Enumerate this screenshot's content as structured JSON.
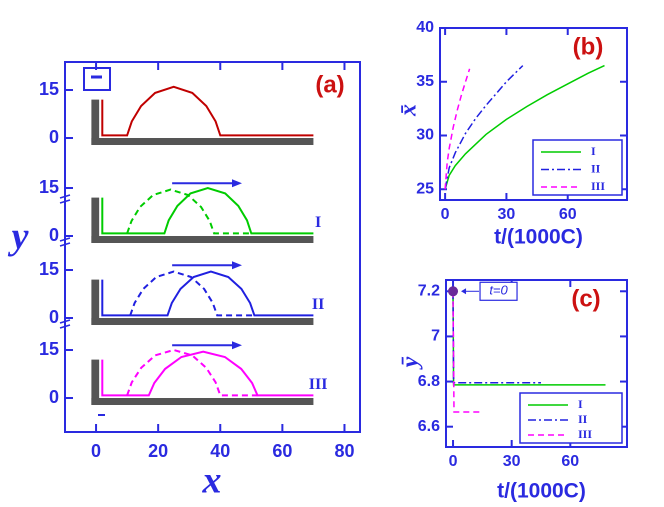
{
  "chart_data": [
    {
      "type": "profile",
      "label": "(a)",
      "xlabel": "x",
      "ylabel": "y",
      "xlim": [
        -10,
        85
      ],
      "xticks": [
        0,
        20,
        40,
        60,
        80
      ],
      "yticks": [
        0,
        15
      ],
      "panels": [
        {
          "series": [
            {
              "color": "#c00000",
              "style": "solid",
              "x": [
                2,
                2,
                10,
                11.5,
                14.5,
                19,
                25,
                31,
                35.5,
                38.5,
                40,
                70
              ],
              "y": [
                12,
                0.8,
                0.8,
                5.2,
                10,
                14.1,
                16,
                14.1,
                10,
                5.2,
                0.8,
                0.8
              ]
            }
          ]
        },
        {
          "name": "I",
          "series": [
            {
              "color": "#00cc00",
              "style": "dashed",
              "x": [
                10,
                11.4,
                14.2,
                18.4,
                24,
                29.6,
                33.8,
                36.6,
                38,
                50
              ],
              "y": [
                0.8,
                4.7,
                9.1,
                12.8,
                14.5,
                12.8,
                9.1,
                4.7,
                0.8,
                0.8
              ]
            },
            {
              "color": "#00cc00",
              "style": "solid",
              "x": [
                2,
                2,
                22,
                23.4,
                26.2,
                30.4,
                36,
                41.6,
                45.8,
                48.6,
                50,
                70
              ],
              "y": [
                12,
                0.8,
                0.8,
                4.9,
                9.4,
                13.3,
                15,
                13.3,
                9.4,
                4.9,
                0.8,
                0.8
              ]
            }
          ]
        },
        {
          "name": "II",
          "series": [
            {
              "color": "#2020e0",
              "style": "dashed",
              "x": [
                11,
                12.4,
                15.2,
                19.4,
                25,
                30.6,
                34.8,
                37.6,
                39,
                51
              ],
              "y": [
                0.8,
                4.7,
                9.1,
                12.8,
                14.5,
                12.8,
                9.1,
                4.7,
                0.8,
                0.8
              ]
            },
            {
              "color": "#2020e0",
              "style": "solid",
              "x": [
                2,
                2,
                23,
                24.4,
                27.2,
                31.4,
                37,
                42.6,
                46.8,
                49.6,
                51,
                70
              ],
              "y": [
                12,
                0.8,
                0.8,
                4.7,
                9.1,
                12.8,
                14.5,
                12.8,
                9.1,
                4.7,
                0.8,
                0.8
              ]
            }
          ]
        },
        {
          "name": "III",
          "series": [
            {
              "color": "#ff00ff",
              "style": "dashed",
              "x": [
                10,
                11.5,
                14.5,
                19,
                25,
                31,
                35.5,
                38.5,
                40,
                52
              ],
              "y": [
                0.8,
                4.9,
                9.4,
                13.3,
                15,
                13.3,
                9.4,
                4.9,
                0.8,
                0.8
              ]
            },
            {
              "color": "#ff00ff",
              "style": "solid",
              "x": [
                2,
                2,
                17,
                18.75,
                22.25,
                27.5,
                34.5,
                41.5,
                46.75,
                50.25,
                52,
                70
              ],
              "y": [
                12,
                0.8,
                0.8,
                4.7,
                9.1,
                12.8,
                14.5,
                12.8,
                9.1,
                4.7,
                0.8,
                0.8
              ]
            }
          ]
        }
      ]
    },
    {
      "type": "line",
      "label": "(b)",
      "xlabel": "t/(1000C)",
      "ylabel": "x̄",
      "xlim": [
        -2.5,
        89
      ],
      "xticks": [
        0,
        30,
        60
      ],
      "ylim": [
        24,
        40
      ],
      "yticks": [
        25,
        30,
        35,
        40
      ],
      "series": [
        {
          "name": "I",
          "color": "#00cc00",
          "style": "solid",
          "x": [
            0,
            2,
            5,
            10,
            20,
            30,
            40,
            50,
            60,
            70,
            78
          ],
          "y": [
            25,
            26.3,
            27.2,
            28.3,
            30.1,
            31.5,
            32.7,
            33.8,
            34.8,
            35.8,
            36.5
          ]
        },
        {
          "name": "II",
          "color": "#2020e0",
          "style": "dashdot",
          "x": [
            0,
            2,
            5,
            10,
            15,
            20,
            25,
            30,
            38
          ],
          "y": [
            25,
            27,
            28.4,
            30.2,
            31.6,
            32.8,
            33.9,
            35,
            36.5
          ]
        },
        {
          "name": "III",
          "color": "#ff00ff",
          "style": "dashed",
          "x": [
            0,
            1,
            2,
            4,
            6,
            8,
            10,
            12
          ],
          "y": [
            25,
            27.5,
            28.8,
            30.8,
            32.4,
            33.8,
            35,
            36.2
          ]
        }
      ]
    },
    {
      "type": "line",
      "label": "(c)",
      "xlabel": "t/(1000C)",
      "ylabel": "ȳ",
      "xlim": [
        -3.6,
        89
      ],
      "xticks": [
        0,
        30,
        60
      ],
      "ylim": [
        6.51,
        7.25
      ],
      "yticks": [
        6.6,
        6.8,
        7,
        7.2
      ],
      "marker": {
        "x": 0,
        "y": 7.2,
        "label": "t=0"
      },
      "series": [
        {
          "name": "I",
          "color": "#00cc00",
          "style": "solid",
          "x": [
            0,
            0.3,
            78
          ],
          "y": [
            7.2,
            6.785,
            6.785
          ]
        },
        {
          "name": "II",
          "color": "#2020e0",
          "style": "dashdot",
          "x": [
            0,
            0.3,
            45
          ],
          "y": [
            7.2,
            6.795,
            6.795
          ]
        },
        {
          "name": "III",
          "color": "#ff00ff",
          "style": "dashed",
          "x": [
            0,
            0.5,
            14
          ],
          "y": [
            7.2,
            6.665,
            6.665
          ]
        }
      ]
    }
  ]
}
